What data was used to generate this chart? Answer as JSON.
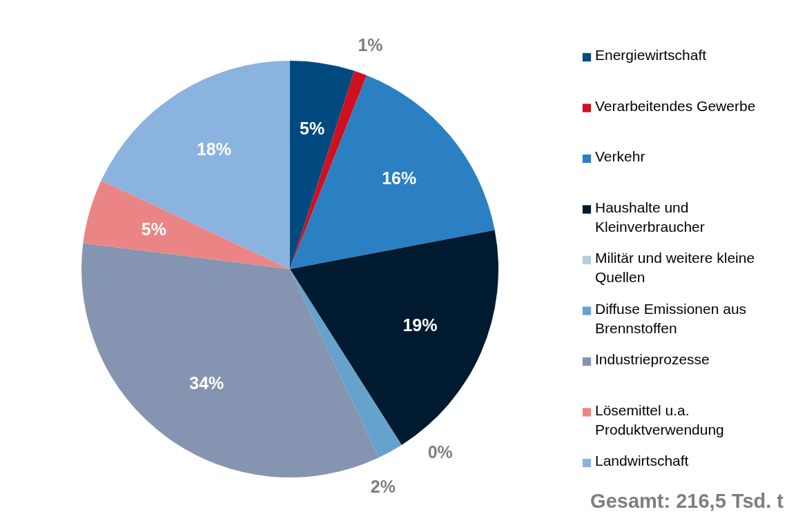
{
  "chart_data": {
    "type": "pie",
    "categories": [
      "Energiewirtschaft",
      "Verarbeitendes Gewerbe",
      "Verkehr",
      "Haushalte und Kleinverbraucher",
      "Militär und weitere kleine Quellen",
      "Diffuse Emissionen aus Brennstoffen",
      "Industrieprozesse",
      "Lösemittel u.a. Produktverwendung",
      "Landwirtschaft"
    ],
    "values": [
      5,
      1,
      16,
      19,
      0,
      2,
      34,
      5,
      18
    ],
    "value_labels": [
      "5%",
      "1%",
      "16%",
      "19%",
      "0%",
      "2%",
      "34%",
      "5%",
      "18%"
    ],
    "colors": [
      "#004a7f",
      "#d0101e",
      "#2a80c2",
      "#001a2f",
      "#b5ccdd",
      "#65a2cc",
      "#8594b1",
      "#eb8585",
      "#8ab3e0"
    ],
    "legend": "right",
    "annotations": [
      "Gesamt: 216,5 Tsd. t"
    ]
  }
}
